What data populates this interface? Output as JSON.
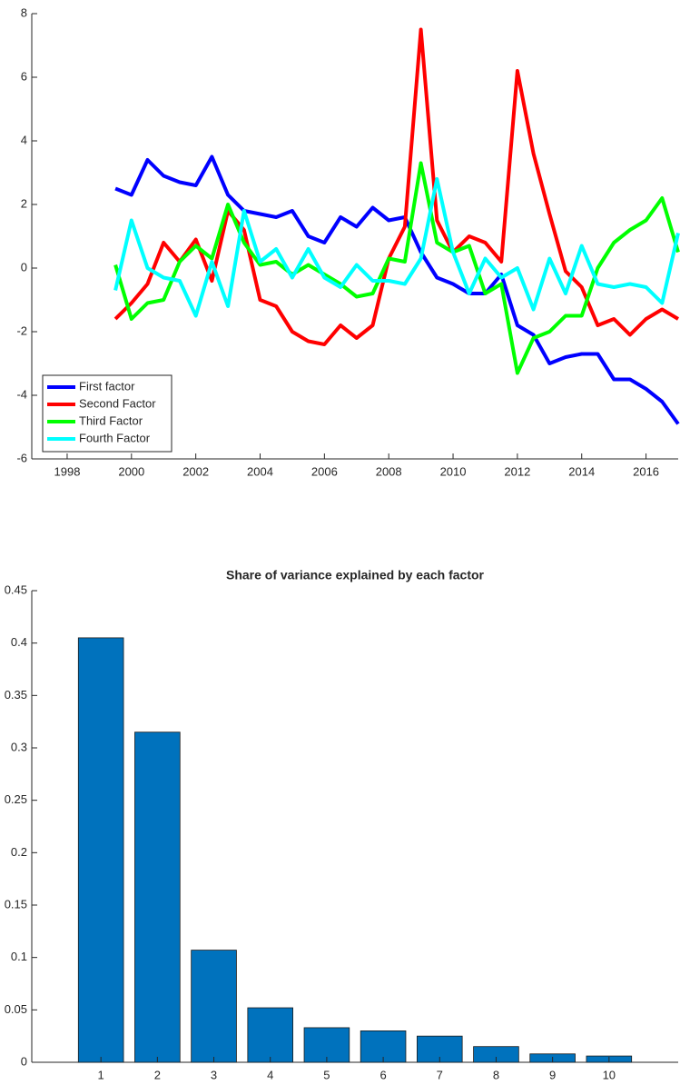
{
  "chart_data": [
    {
      "type": "line",
      "x": [
        1999.5,
        2000,
        2000.5,
        2001,
        2001.5,
        2002,
        2002.5,
        2003,
        2003.5,
        2004,
        2004.5,
        2005,
        2005.5,
        2006,
        2006.5,
        2007,
        2007.5,
        2008,
        2008.5,
        2009,
        2009.5,
        2010,
        2010.5,
        2011,
        2011.5,
        2012,
        2012.5,
        2013,
        2013.5,
        2014,
        2014.5,
        2015,
        2015.5,
        2016,
        2016.5,
        2017
      ],
      "series": [
        {
          "name": "First factor",
          "color": "#0000ff",
          "values": [
            2.5,
            2.3,
            3.4,
            2.9,
            2.7,
            2.6,
            3.5,
            2.3,
            1.8,
            1.7,
            1.6,
            1.8,
            1.0,
            0.8,
            1.6,
            1.3,
            1.9,
            1.5,
            1.6,
            0.5,
            -0.3,
            -0.5,
            -0.8,
            -0.8,
            -0.2,
            -1.8,
            -2.1,
            -3.0,
            -2.8,
            -2.7,
            -2.7,
            -3.5,
            -3.5,
            -3.8,
            -4.2,
            -4.9
          ]
        },
        {
          "name": "Second Factor",
          "color": "#ff0000",
          "values": [
            -1.6,
            -1.1,
            -0.5,
            0.8,
            0.2,
            0.9,
            -0.4,
            1.8,
            1.2,
            -1.0,
            -1.2,
            -2.0,
            -2.3,
            -2.4,
            -1.8,
            -2.2,
            -1.8,
            0.3,
            1.3,
            7.5,
            1.5,
            0.5,
            1.0,
            0.8,
            0.2,
            6.2,
            3.6,
            1.7,
            -0.1,
            -0.6,
            -1.8,
            -1.6,
            -2.1,
            -1.6,
            -1.3,
            -1.6
          ]
        },
        {
          "name": "Third Factor",
          "color": "#00ff00",
          "values": [
            0.1,
            -1.6,
            -1.1,
            -1.0,
            0.2,
            0.7,
            0.3,
            2.0,
            0.8,
            0.1,
            0.2,
            -0.2,
            0.1,
            -0.2,
            -0.5,
            -0.9,
            -0.8,
            0.3,
            0.2,
            3.3,
            0.8,
            0.5,
            0.7,
            -0.8,
            -0.5,
            -3.3,
            -2.2,
            -2.0,
            -1.5,
            -1.5,
            0.0,
            0.8,
            1.2,
            1.5,
            2.2,
            0.5
          ]
        },
        {
          "name": "Fourth Factor",
          "color": "#00ffff",
          "values": [
            -0.7,
            1.5,
            0.0,
            -0.3,
            -0.4,
            -1.5,
            0.2,
            -1.2,
            1.8,
            0.2,
            0.6,
            -0.3,
            0.6,
            -0.3,
            -0.6,
            0.1,
            -0.4,
            -0.4,
            -0.5,
            0.3,
            2.8,
            0.5,
            -0.8,
            0.3,
            -0.3,
            0.0,
            -1.3,
            0.3,
            -0.8,
            0.7,
            -0.5,
            -0.6,
            -0.5,
            -0.6,
            -1.1,
            1.1
          ]
        }
      ],
      "xlim": [
        1996.9,
        2017.0
      ],
      "xticks": [
        1998,
        2000,
        2002,
        2004,
        2006,
        2008,
        2010,
        2012,
        2014,
        2016
      ],
      "ylim": [
        -6,
        8
      ],
      "yticks": [
        -6,
        -4,
        -2,
        0,
        2,
        4,
        6,
        8
      ],
      "legend": "southwest"
    },
    {
      "type": "bar",
      "title": "Share of variance explained by each factor",
      "categories": [
        "1",
        "2",
        "3",
        "4",
        "5",
        "6",
        "7",
        "8",
        "9",
        "10"
      ],
      "values": [
        0.405,
        0.315,
        0.107,
        0.052,
        0.033,
        0.03,
        0.025,
        0.015,
        0.008,
        0.006
      ],
      "color": "#0072bd",
      "ylim": [
        0,
        0.45
      ],
      "yticks": [
        0,
        0.05,
        0.1,
        0.15,
        0.2,
        0.25,
        0.3,
        0.35,
        0.4,
        0.45
      ]
    }
  ]
}
